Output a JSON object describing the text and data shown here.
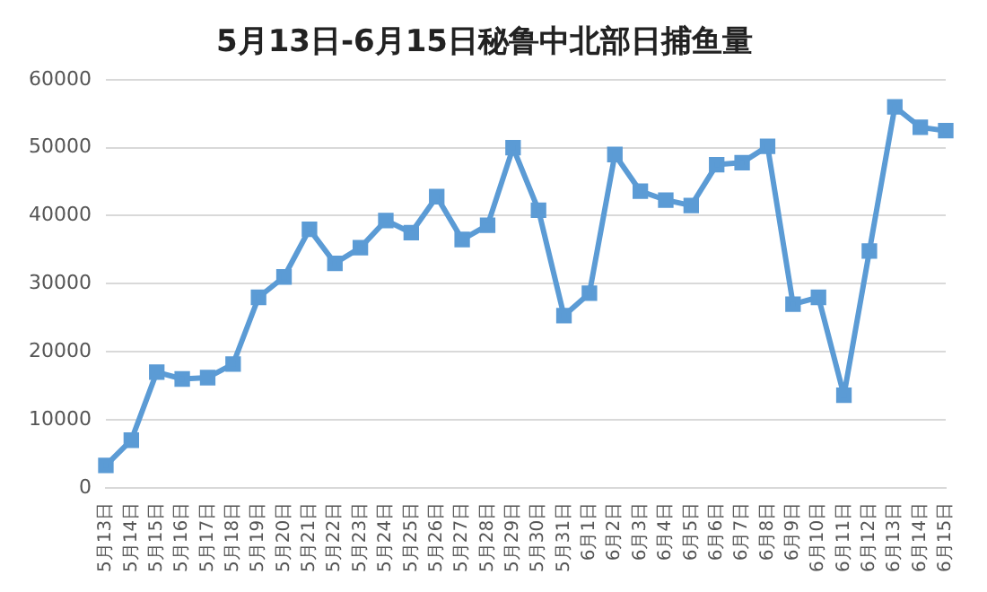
{
  "chart_data": {
    "type": "line",
    "title": "5月13日-6月15日秘鲁中北部日捕鱼量",
    "categories": [
      "5月13日",
      "5月14日",
      "5月15日",
      "5月16日",
      "5月17日",
      "5月18日",
      "5月19日",
      "5月20日",
      "5月21日",
      "5月22日",
      "5月23日",
      "5月24日",
      "5月25日",
      "5月26日",
      "5月27日",
      "5月28日",
      "5月29日",
      "5月30日",
      "5月31日",
      "6月1日",
      "6月2日",
      "6月3日",
      "6月4日",
      "6月5日",
      "6月6日",
      "6月7日",
      "6月8日",
      "6月9日",
      "6月10日",
      "6月11日",
      "6月12日",
      "6月13日",
      "6月14日",
      "6月15日"
    ],
    "series": [
      {
        "color": "#5b9bd5",
        "values": [
          3300,
          7000,
          17000,
          16000,
          16200,
          18200,
          28000,
          31000,
          38000,
          33000,
          35300,
          39300,
          37500,
          42800,
          36500,
          38600,
          50000,
          40800,
          25300,
          28600,
          49000,
          43600,
          42300,
          41500,
          47500,
          47800,
          50200,
          27000,
          28000,
          13600,
          34800,
          56000,
          53000,
          52500
        ]
      }
    ],
    "ylim": [
      0,
      60000
    ],
    "yticks": [
      0,
      10000,
      20000,
      30000,
      40000,
      50000,
      60000
    ],
    "grid": "y",
    "marker": "square",
    "line_style": "solid"
  }
}
